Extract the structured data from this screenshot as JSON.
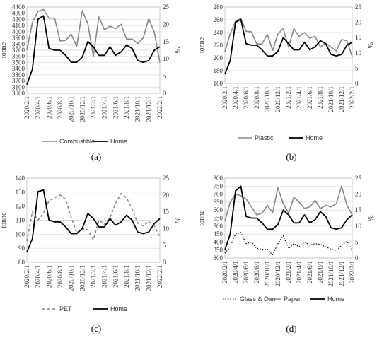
{
  "chart_data": [
    {
      "id": "a",
      "type": "line",
      "panel_label": "(a)",
      "x": [
        "2020/2/1",
        "2020/3/1",
        "2020/4/1",
        "2020/5/1",
        "2020/6/1",
        "2020/7/1",
        "2020/8/1",
        "2020/9/1",
        "2020/10/1",
        "2020/11/1",
        "2020/12/1",
        "2021/1/1",
        "2021/2/1",
        "2021/3/1",
        "2021/4/1",
        "2021/5/1",
        "2021/6/1",
        "2021/7/1",
        "2021/8/1",
        "2021/9/1",
        "2021/10/1",
        "2021/11/1",
        "2021/12/1",
        "2022/1/1",
        "2022/2/1"
      ],
      "xtick_labels": [
        "2020/2/1",
        "2020/4/1",
        "2020/6/1",
        "2020/8/1",
        "2020/10/1",
        "2020/12/1",
        "2021/2/1",
        "2021/4/1",
        "2021/6/1",
        "2021/8/1",
        "2021/10/1",
        "2021/12/1",
        "2022/2/1"
      ],
      "ylabel_left": "tonne",
      "ylabel_right": "%",
      "ylim_left": [
        3000,
        4400
      ],
      "yticks_left": [
        3000,
        3100,
        3200,
        3300,
        3400,
        3500,
        3600,
        3700,
        3800,
        3900,
        4000,
        4100,
        4200,
        4300,
        4400
      ],
      "ylim_right": [
        0,
        25
      ],
      "yticks_right": [
        0,
        5,
        10,
        15,
        20,
        25
      ],
      "series": [
        {
          "name": "Combustible",
          "axis": "left",
          "style": "solid-gray",
          "values": [
            3700,
            4150,
            4330,
            4360,
            4220,
            4220,
            3850,
            3860,
            3960,
            3760,
            4340,
            4130,
            3600,
            4240,
            4030,
            4090,
            4050,
            4120,
            3880,
            3880,
            3810,
            3900,
            4210,
            3990,
            3500
          ]
        },
        {
          "name": "Home",
          "axis": "right",
          "style": "solid-black",
          "values": [
            2.5,
            7.0,
            21.5,
            22.5,
            13.0,
            12.5,
            12.5,
            11.0,
            9.0,
            9.0,
            10.5,
            15.0,
            13.5,
            11.0,
            11.0,
            13.5,
            11.0,
            12.0,
            14.0,
            13.0,
            9.5,
            9.0,
            9.5,
            12.5,
            13.5
          ]
        }
      ]
    },
    {
      "id": "b",
      "type": "line",
      "panel_label": "(b)",
      "x": [
        "2020/2/1",
        "2020/3/1",
        "2020/4/1",
        "2020/5/1",
        "2020/6/1",
        "2020/7/1",
        "2020/8/1",
        "2020/9/1",
        "2020/10/1",
        "2020/11/1",
        "2020/12/1",
        "2021/1/1",
        "2021/2/1",
        "2021/3/1",
        "2021/4/1",
        "2021/5/1",
        "2021/6/1",
        "2021/7/1",
        "2021/8/1",
        "2021/9/1",
        "2021/10/1",
        "2021/11/1",
        "2021/12/1",
        "2022/1/1",
        "2022/2/1"
      ],
      "xtick_labels": [
        "2020/2/1",
        "2020/4/1",
        "2020/6/1",
        "2020/8/1",
        "2020/10/1",
        "2020/12/1",
        "2021/2/1",
        "2021/4/1",
        "2021/6/1",
        "2021/8/1",
        "2021/10/1",
        "2021/12/1",
        "2022/2/1"
      ],
      "ylabel_left": "tonne",
      "ylabel_right": "%",
      "ylim_left": [
        160,
        280
      ],
      "yticks_left": [
        160,
        180,
        200,
        220,
        240,
        260,
        280
      ],
      "ylim_right": [
        0,
        25
      ],
      "yticks_right": [
        0,
        5,
        10,
        15,
        20,
        25
      ],
      "series": [
        {
          "name": "Plastic",
          "axis": "left",
          "style": "solid-gray",
          "values": [
            210,
            238,
            258,
            262,
            242,
            241,
            222,
            222,
            237,
            212,
            238,
            246,
            217,
            246,
            234,
            240,
            231,
            234,
            217,
            223,
            217,
            211,
            229,
            227,
            202
          ]
        },
        {
          "name": "Home",
          "axis": "right",
          "style": "solid-black",
          "values": [
            3.0,
            7.5,
            20.0,
            21.0,
            13.0,
            12.5,
            12.5,
            11.0,
            9.0,
            9.0,
            10.5,
            15.0,
            13.0,
            11.0,
            11.0,
            13.5,
            11.0,
            12.0,
            14.0,
            13.0,
            9.5,
            9.0,
            9.5,
            12.5,
            13.5
          ]
        }
      ]
    },
    {
      "id": "c",
      "type": "line",
      "panel_label": "(c)",
      "x": [
        "2020/2/1",
        "2020/3/1",
        "2020/4/1",
        "2020/5/1",
        "2020/6/1",
        "2020/7/1",
        "2020/8/1",
        "2020/9/1",
        "2020/10/1",
        "2020/11/1",
        "2020/12/1",
        "2021/1/1",
        "2021/2/1",
        "2021/3/1",
        "2021/4/1",
        "2021/5/1",
        "2021/6/1",
        "2021/7/1",
        "2021/8/1",
        "2021/9/1",
        "2021/10/1",
        "2021/11/1",
        "2021/12/1",
        "2022/1/1",
        "2022/2/1"
      ],
      "xtick_labels": [
        "2020/2/1",
        "2020/4/1",
        "2020/6/1",
        "2020/8/1",
        "2020/10/1",
        "2020/12/1",
        "2021/2/1",
        "2021/4/1",
        "2021/6/1",
        "2021/8/1",
        "2021/10/1",
        "2021/12/1",
        "2022/2/1"
      ],
      "ylabel_left": "tonne",
      "ylabel_right": "%",
      "ylim_left": [
        80,
        140
      ],
      "yticks_left": [
        80,
        90,
        100,
        110,
        120,
        130,
        140
      ],
      "ylim_right": [
        0,
        25
      ],
      "yticks_right": [
        0,
        5,
        10,
        15,
        20,
        25
      ],
      "series": [
        {
          "name": "PET",
          "axis": "left",
          "style": "dashed-gray",
          "values": [
            95,
            116,
            110,
            115,
            124,
            126,
            128,
            125,
            112,
            101,
            104,
            103,
            96,
            110,
            107,
            112,
            122,
            129,
            126,
            118,
            108,
            106,
            109,
            106,
            98
          ]
        },
        {
          "name": "Home",
          "axis": "right",
          "style": "solid-black",
          "values": [
            3.0,
            7.0,
            21.0,
            21.5,
            12.5,
            12.0,
            12.0,
            10.5,
            8.5,
            8.5,
            10.0,
            14.5,
            13.0,
            10.5,
            10.5,
            13.0,
            11.0,
            12.0,
            14.0,
            12.5,
            9.0,
            8.5,
            9.0,
            11.5,
            13.0
          ]
        }
      ]
    },
    {
      "id": "d",
      "type": "line",
      "panel_label": "(d)",
      "x": [
        "2020/2/1",
        "2020/3/1",
        "2020/4/1",
        "2020/5/1",
        "2020/6/1",
        "2020/7/1",
        "2020/8/1",
        "2020/9/1",
        "2020/10/1",
        "2020/11/1",
        "2020/12/1",
        "2021/1/1",
        "2021/2/1",
        "2021/3/1",
        "2021/4/1",
        "2021/5/1",
        "2021/6/1",
        "2021/7/1",
        "2021/8/1",
        "2021/9/1",
        "2021/10/1",
        "2021/11/1",
        "2021/12/1",
        "2022/1/1",
        "2022/2/1"
      ],
      "xtick_labels": [
        "2020/2/1",
        "2020/4/1",
        "2020/6/1",
        "2020/8/1",
        "2020/10/1",
        "2020/12/1",
        "2021/2/1",
        "2021/4/1",
        "2021/6/1",
        "2021/8/1",
        "2021/10/1",
        "2021/12/1",
        "2022/2/1"
      ],
      "ylabel_left": "tonne",
      "ylabel_right": "%",
      "ylim_left": [
        300,
        800
      ],
      "yticks_left": [
        300,
        350,
        400,
        450,
        500,
        550,
        600,
        650,
        700,
        750,
        800
      ],
      "ylim_right": [
        0,
        25
      ],
      "yticks_right": [
        0,
        5,
        10,
        15,
        20,
        25
      ],
      "series": [
        {
          "name": "Glass & Can",
          "axis": "left",
          "style": "dotted-black",
          "values": [
            330,
            370,
            450,
            460,
            390,
            400,
            360,
            355,
            355,
            320,
            390,
            440,
            360,
            390,
            370,
            400,
            380,
            390,
            385,
            370,
            355,
            345,
            380,
            405,
            350
          ]
        },
        {
          "name": "Paper",
          "axis": "left",
          "style": "solid-gray",
          "values": [
            530,
            650,
            700,
            690,
            670,
            620,
            570,
            580,
            630,
            585,
            740,
            640,
            580,
            680,
            650,
            610,
            620,
            660,
            610,
            630,
            620,
            640,
            750,
            630,
            570
          ]
        },
        {
          "name": "Home",
          "axis": "right",
          "style": "solid-black",
          "values": [
            2.5,
            7.5,
            21.0,
            22.5,
            13.0,
            12.5,
            12.5,
            11.0,
            9.0,
            9.0,
            10.5,
            15.0,
            13.5,
            11.0,
            11.0,
            13.5,
            11.0,
            12.0,
            14.5,
            13.0,
            9.5,
            9.0,
            9.5,
            12.0,
            13.5
          ]
        }
      ]
    }
  ]
}
